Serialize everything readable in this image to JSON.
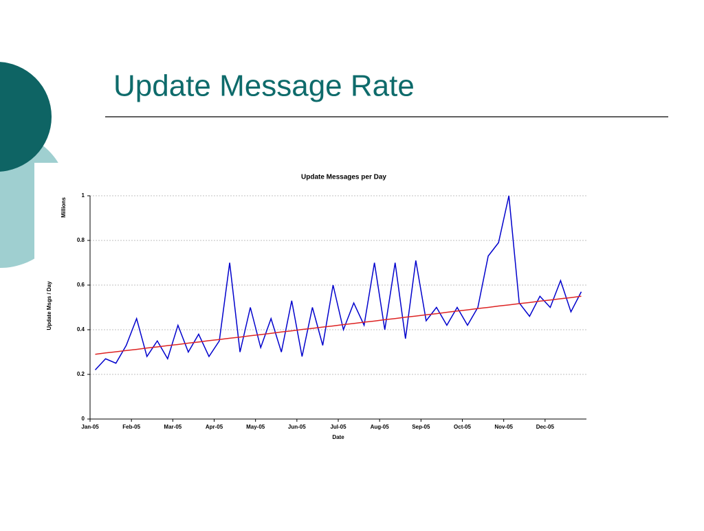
{
  "title": "Update Message Rate",
  "chart_data": {
    "type": "line",
    "title": "Update Messages per Day",
    "x_label": "Date",
    "y_label": "Update Msgs / Day",
    "y_unit_label": "Millions",
    "categories": [
      "Jan-05",
      null,
      null,
      null,
      "Feb-05",
      null,
      null,
      null,
      "Mar-05",
      null,
      null,
      null,
      "Apr-05",
      null,
      null,
      null,
      "May-05",
      null,
      null,
      null,
      "Jun-05",
      null,
      null,
      null,
      "Jul-05",
      null,
      null,
      null,
      "Aug-05",
      null,
      null,
      null,
      "Sep-05",
      null,
      null,
      null,
      "Oct-05",
      null,
      null,
      null,
      "Nov-05",
      null,
      null,
      null,
      "Dec-05",
      null,
      null,
      null
    ],
    "series": [
      {
        "color": "#0000cc",
        "values": [
          0.22,
          0.27,
          0.25,
          0.33,
          0.45,
          0.28,
          0.35,
          0.27,
          0.42,
          0.3,
          0.38,
          0.28,
          0.35,
          0.7,
          0.3,
          0.5,
          0.32,
          0.45,
          0.3,
          0.53,
          0.28,
          0.5,
          0.33,
          0.6,
          0.4,
          0.52,
          0.42,
          0.7,
          0.4,
          0.7,
          0.36,
          0.71,
          0.44,
          0.5,
          0.42,
          0.5,
          0.42,
          0.5,
          0.73,
          0.79,
          1.0,
          0.52,
          0.46,
          0.55,
          0.5,
          0.62,
          0.48,
          0.57
        ]
      },
      {
        "color": "#dd2222",
        "values": [
          0.29,
          0.296,
          0.301,
          0.307,
          0.312,
          0.318,
          0.323,
          0.329,
          0.334,
          0.34,
          0.345,
          0.351,
          0.356,
          0.362,
          0.367,
          0.373,
          0.378,
          0.384,
          0.39,
          0.395,
          0.401,
          0.406,
          0.412,
          0.417,
          0.423,
          0.428,
          0.434,
          0.439,
          0.445,
          0.45,
          0.456,
          0.461,
          0.467,
          0.472,
          0.478,
          0.484,
          0.489,
          0.495,
          0.5,
          0.506,
          0.511,
          0.517,
          0.522,
          0.528,
          0.533,
          0.539,
          0.544,
          0.55
        ]
      }
    ],
    "ylim": [
      0,
      1
    ],
    "yticks": [
      0,
      0.2,
      0.4,
      0.6,
      0.8,
      1
    ],
    "grid": true
  }
}
